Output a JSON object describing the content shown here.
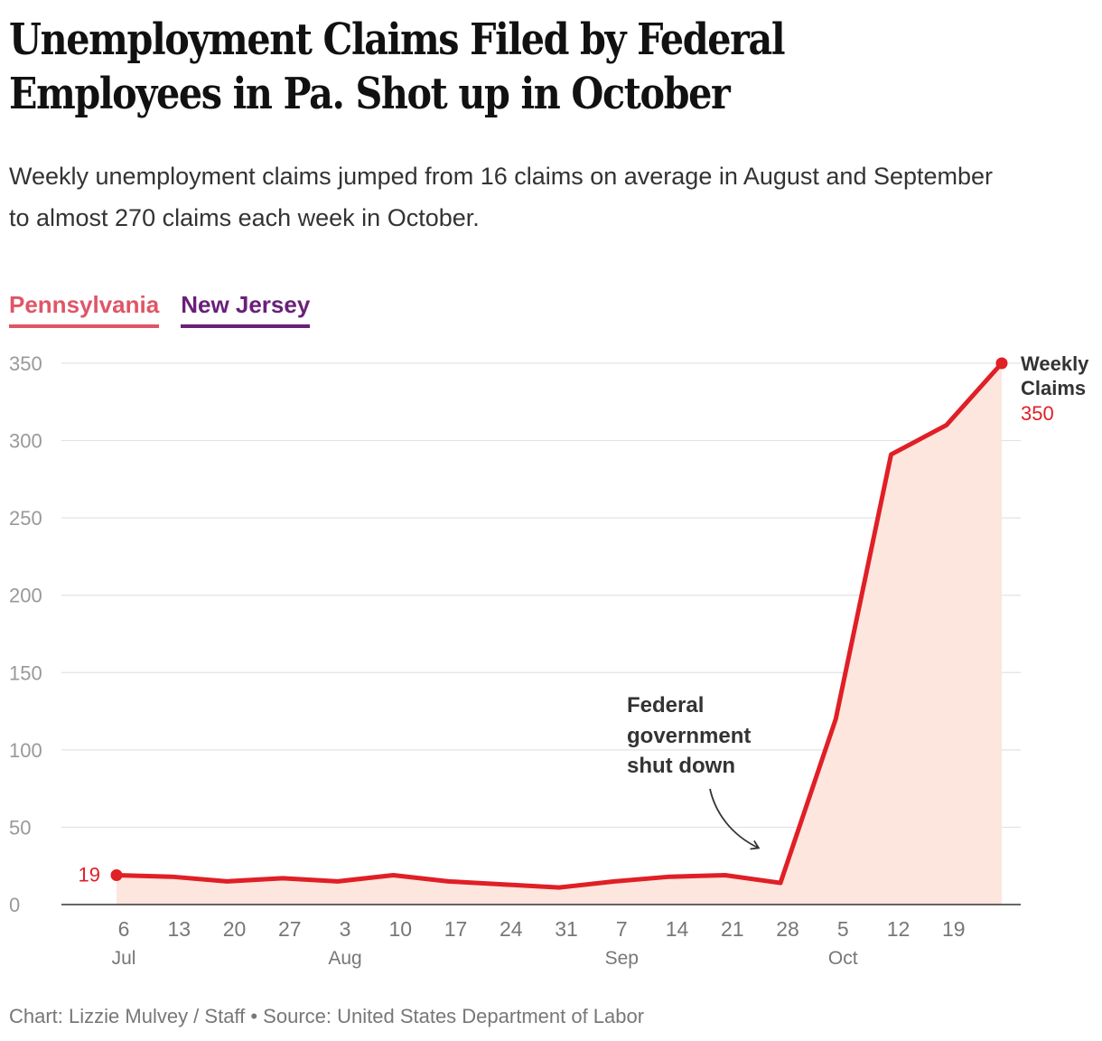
{
  "chart_data": {
    "type": "area",
    "title": "Unemployment Claims Filed by Federal Employees in Pa. Shot up in October",
    "title_lines": [
      "Unemployment Claims Filed by Federal",
      "Employees in Pa. Shot up in October"
    ],
    "subtitle": "Weekly unemployment claims jumped from 16 claims on average in August and September to almost 270 claims each week in October.",
    "tabs": [
      {
        "label": "Pennsylvania",
        "color": "#e05567",
        "active": true
      },
      {
        "label": "New Jersey",
        "color": "#6a1f7a",
        "active": false
      }
    ],
    "series": [
      {
        "name": "Pennsylvania",
        "color": "#e01f26",
        "fill": "#fde6de",
        "values": [
          19,
          18,
          15,
          17,
          15,
          19,
          15,
          13,
          11,
          15,
          18,
          19,
          14,
          120,
          291,
          310,
          350
        ]
      }
    ],
    "x_tick_labels": [
      "6",
      "13",
      "20",
      "27",
      "3",
      "10",
      "17",
      "24",
      "31",
      "7",
      "14",
      "21",
      "28",
      "5",
      "12",
      "19"
    ],
    "month_labels": [
      {
        "label": "Jul",
        "tick_index": 0
      },
      {
        "label": "Aug",
        "tick_index": 4
      },
      {
        "label": "Sep",
        "tick_index": 9
      },
      {
        "label": "Oct",
        "tick_index": 13
      }
    ],
    "y_ticks": [
      "0",
      "50",
      "100",
      "150",
      "200",
      "250",
      "300",
      "350"
    ],
    "ylim": [
      0,
      350
    ],
    "start_label": "19",
    "end_label_lines": [
      "Weekly",
      "Claims"
    ],
    "end_value_label": "350",
    "annotation_lines": [
      "Federal",
      "government",
      "shut down"
    ],
    "colors": {
      "line": "#e01f26",
      "area": "#fde6de",
      "grid": "#e3e3e3",
      "axis": "#333333",
      "tick": "#999999",
      "annotation": "#333333"
    }
  },
  "footer": "Chart: Lizzie Mulvey / Staff • Source: United States Department of Labor"
}
